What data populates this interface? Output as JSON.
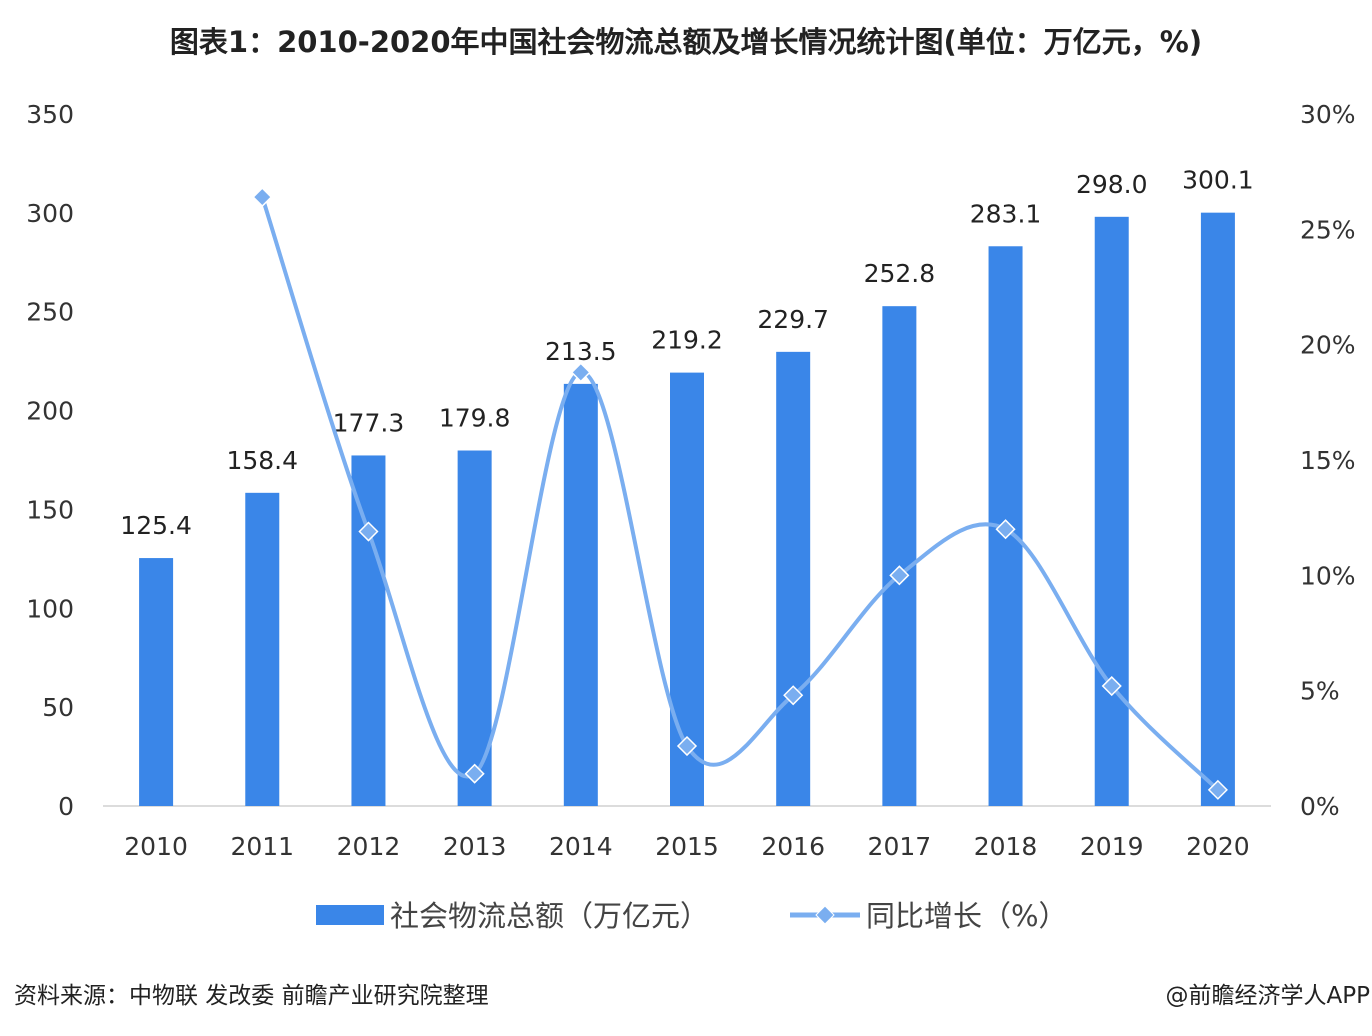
{
  "chart_data": {
    "type": "bar+line",
    "title": "图表1：2010-2020年中国社会物流总额及增长情况统计图(单位：万亿元，%)",
    "categories": [
      "2010",
      "2011",
      "2012",
      "2013",
      "2014",
      "2015",
      "2016",
      "2017",
      "2018",
      "2019",
      "2020"
    ],
    "series": [
      {
        "name": "社会物流总额（万亿元）",
        "type": "bar",
        "axis": "left",
        "values": [
          125.4,
          158.4,
          177.3,
          179.8,
          213.5,
          219.2,
          229.7,
          252.8,
          283.1,
          298.0,
          300.1
        ],
        "labels": [
          "125.4",
          "158.4",
          "177.3",
          "179.8",
          "213.5",
          "219.2",
          "229.7",
          "252.8",
          "283.1",
          "298.0",
          "300.1"
        ]
      },
      {
        "name": "同比增长（%）",
        "type": "line",
        "axis": "right",
        "smooth": true,
        "values": [
          null,
          26.4,
          11.9,
          1.4,
          18.8,
          2.6,
          4.8,
          10.0,
          12.0,
          5.2,
          0.7
        ]
      }
    ],
    "left_axis": {
      "ylim": [
        0,
        350
      ],
      "ticks": [
        "0",
        "50",
        "100",
        "150",
        "200",
        "250",
        "300",
        "350"
      ]
    },
    "right_axis": {
      "ylim": [
        0,
        30
      ],
      "ticks": [
        "0%",
        "5%",
        "10%",
        "15%",
        "20%",
        "25%",
        "30%"
      ]
    },
    "grid": false,
    "legend_placement": "bottom",
    "colors": {
      "bar": "#3a86e8",
      "line": "#7aaef0"
    }
  },
  "footer": {
    "source": "资料来源：中物联 发改委 前瞻产业研究院整理",
    "credit": "@前瞻经济学人APP"
  }
}
